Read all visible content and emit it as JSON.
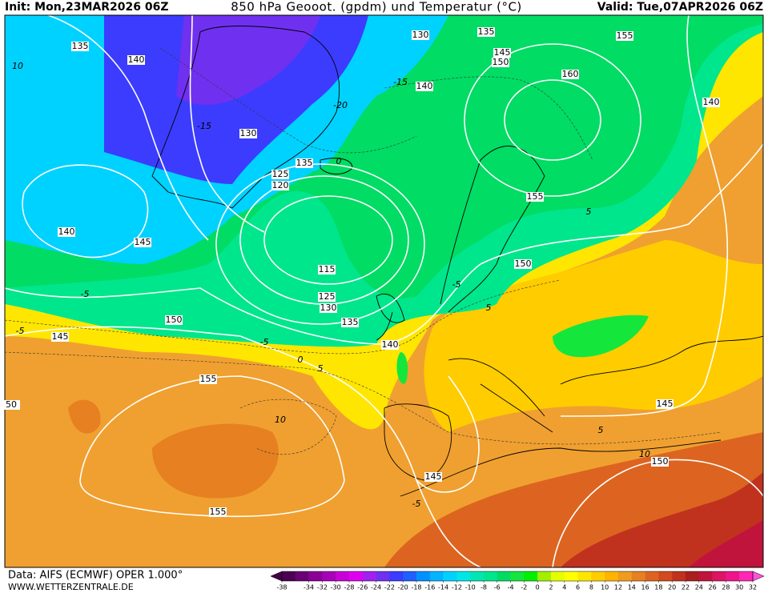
{
  "header": {
    "init": "Init: Mon,23MAR2026 06Z",
    "title": "850 hPa Geooot. (gpdm) und Temperatur (°C)",
    "valid": "Valid: Tue,07APR2026 06Z"
  },
  "footer": {
    "source": "Data: AIFS (ECMWF) OPER 1.000°",
    "website": "WWW.WETTERZENTRALE.DE"
  },
  "colorbar": {
    "ticks": [
      -38,
      -34,
      -32,
      -30,
      -28,
      -26,
      -24,
      -22,
      -20,
      -18,
      -16,
      -14,
      -12,
      -10,
      -8,
      -6,
      -4,
      -2,
      0,
      2,
      4,
      6,
      8,
      10,
      12,
      14,
      16,
      18,
      20,
      22,
      24,
      26,
      28,
      30,
      32
    ],
    "range": [
      -38,
      32
    ],
    "colors": [
      "#4b0050",
      "#6a0075",
      "#8a0096",
      "#a800b8",
      "#c800d8",
      "#e000f0",
      "#a020f0",
      "#7030f0",
      "#3c3cff",
      "#2060ff",
      "#0090ff",
      "#00b4ff",
      "#00d2ff",
      "#00e6e6",
      "#00e6b4",
      "#00e68c",
      "#00dc64",
      "#14e63c",
      "#00f000",
      "#a0f000",
      "#e6ff00",
      "#ffff00",
      "#ffe600",
      "#ffcc00",
      "#ffb400",
      "#f09a20",
      "#e68020",
      "#dc6420",
      "#d24a1e",
      "#c0321e",
      "#aa1e1e",
      "#c0143c",
      "#dc1464",
      "#f0148c",
      "#ff28b4"
    ],
    "under_color": "#46004b",
    "over_color": "#ff50e0"
  },
  "contour_labels": [
    135,
    140,
    130,
    135,
    155,
    145,
    150,
    160,
    140,
    140,
    130,
    135,
    125,
    120,
    140,
    145,
    115,
    155,
    150,
    125,
    130,
    135,
    140,
    150,
    145,
    155,
    50,
    145,
    150,
    145,
    155
  ],
  "temperature_labels": [
    10,
    -15,
    -20,
    -15,
    0,
    5,
    -5,
    -5,
    -5,
    5,
    -5,
    0,
    -5,
    10,
    10,
    5,
    5
  ]
}
